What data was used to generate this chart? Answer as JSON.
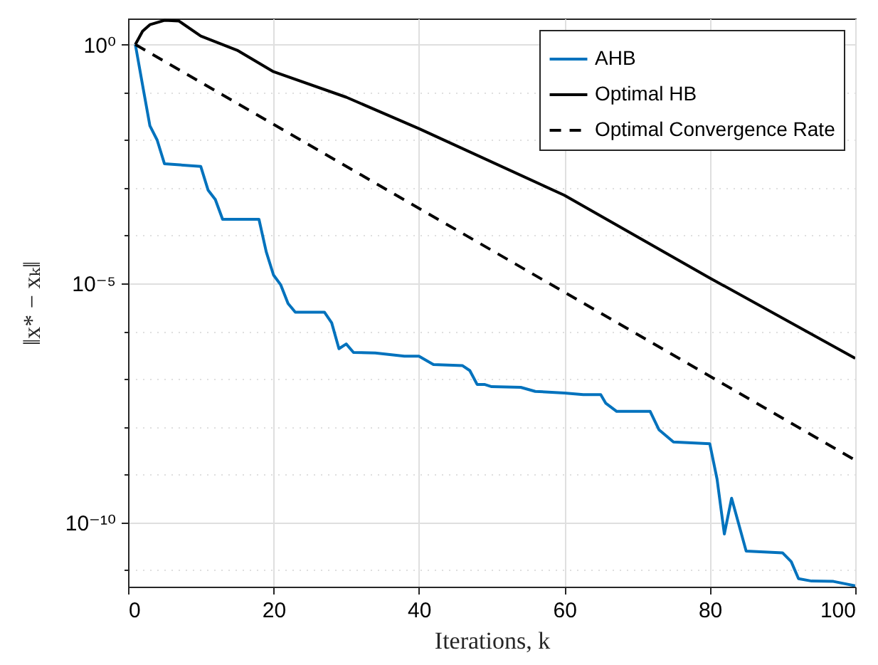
{
  "chart_data": {
    "type": "line",
    "xlabel": "Iterations, k",
    "ylabel": "‖x* − xₖ‖",
    "log": "y",
    "grid": true,
    "legend": "top right",
    "xlim": [
      0,
      100
    ],
    "xticks": [
      0,
      20,
      40,
      60,
      80,
      100
    ],
    "ylim": [
      4.5e-12,
      3.5
    ],
    "yticks": [
      {
        "value": 1,
        "label": "10⁰"
      },
      {
        "value": 0.1,
        "label": null
      },
      {
        "value": 0.01,
        "label": null
      },
      {
        "value": 0.001,
        "label": null
      },
      {
        "value": 0.0001,
        "label": null
      },
      {
        "value": 1e-05,
        "label": "10⁻⁵"
      },
      {
        "value": 1e-06,
        "label": null
      },
      {
        "value": 1e-07,
        "label": null
      },
      {
        "value": 1e-08,
        "label": null
      },
      {
        "value": 1e-09,
        "label": null
      },
      {
        "value": 1e-10,
        "label": "10⁻¹⁰"
      },
      {
        "value": 1e-11,
        "label": null
      }
    ],
    "series": [
      {
        "name": "AHB",
        "color": "#0072bd",
        "line_style": "solid",
        "x": [
          1,
          2,
          3,
          4,
          5,
          10,
          11,
          12,
          13,
          18,
          19,
          20,
          21,
          22,
          23,
          27,
          28,
          29,
          30,
          31,
          34,
          38,
          40,
          42,
          46,
          47,
          48,
          49,
          50,
          54,
          56,
          60,
          62.6,
          65,
          65.7,
          67.2,
          71.8,
          73,
          75,
          80,
          81,
          82,
          83,
          85,
          90,
          91.2,
          92.2,
          94,
          97,
          100
        ],
        "values": [
          1,
          0.14,
          0.02,
          0.01,
          0.0032,
          0.0028,
          0.0009,
          0.00057,
          0.00022,
          0.00022,
          4.6e-05,
          1.5e-05,
          9.3e-06,
          3.8e-06,
          2.5e-06,
          2.5e-06,
          1.5e-06,
          4.3e-07,
          5.4e-07,
          3.6e-07,
          3.5e-07,
          3e-07,
          3e-07,
          2e-07,
          1.9e-07,
          1.5e-07,
          7.7e-08,
          7.7e-08,
          6.9e-08,
          6.7e-08,
          5.5e-08,
          5.1e-08,
          4.7e-08,
          4.7e-08,
          3.1e-08,
          2.1e-08,
          2.1e-08,
          8.7e-09,
          4.8e-09,
          4.4e-09,
          8e-10,
          5.7e-11,
          3.2e-10,
          2.5e-11,
          2.3e-11,
          1.5e-11,
          6.6e-12,
          5.9e-12,
          5.8e-12,
          4.7e-12
        ]
      },
      {
        "name": "Optimal HB",
        "color": "#000000",
        "line_style": "solid",
        "x": [
          1,
          2,
          3,
          5,
          7,
          10,
          15,
          20,
          30,
          40,
          60,
          80,
          100
        ],
        "values": [
          1,
          1.9,
          2.6,
          3.2,
          3.1,
          1.5,
          0.76,
          0.27,
          0.079,
          0.0174,
          0.0007,
          1.3e-05,
          2.7e-07
        ]
      },
      {
        "name": "Optimal Convergence Rate",
        "color": "#000000",
        "line_style": "dashed",
        "x": [
          1,
          100
        ],
        "values": [
          1,
          2e-09
        ]
      }
    ]
  }
}
